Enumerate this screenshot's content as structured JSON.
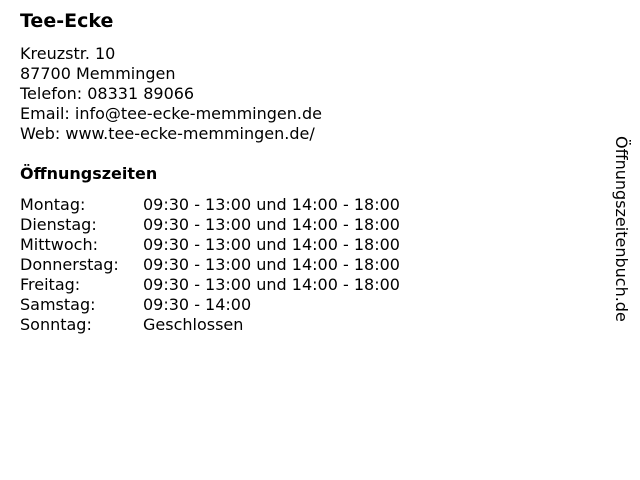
{
  "title": "Tee-Ecke",
  "address": [
    "Kreuzstr. 10",
    "87700 Memmingen",
    "Telefon: 08331 89066",
    "Email: info@tee-ecke-memmingen.de",
    "Web: www.tee-ecke-memmingen.de/"
  ],
  "hours_title": "Öffnungszeiten",
  "hours": [
    {
      "day": "Montag:",
      "time": "09:30 - 13:00 und 14:00 - 18:00"
    },
    {
      "day": "Dienstag:",
      "time": "09:30 - 13:00 und 14:00 - 18:00"
    },
    {
      "day": "Mittwoch:",
      "time": "09:30 - 13:00 und 14:00 - 18:00"
    },
    {
      "day": "Donnerstag:",
      "time": "09:30 - 13:00 und 14:00 - 18:00"
    },
    {
      "day": "Freitag:",
      "time": "09:30 - 13:00 und 14:00 - 18:00"
    },
    {
      "day": "Samstag:",
      "time": "09:30 - 14:00"
    },
    {
      "day": "Sonntag:",
      "time": "Geschlossen"
    }
  ],
  "watermark": "Öffnungszeitenbuch.de"
}
